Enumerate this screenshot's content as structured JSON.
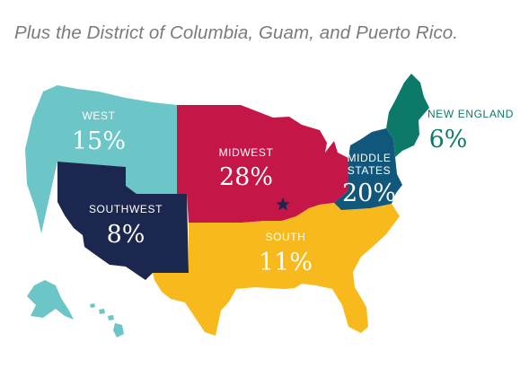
{
  "note": "Plus the District of Columbia, Guam, and Puerto Rico.",
  "colors": {
    "west": "#6cc6c7",
    "southwest": "#1c2750",
    "midwest": "#c41747",
    "south": "#f7b91c",
    "middle_states": "#11577c",
    "new_england": "#0d7a69",
    "new_england_label": "#0d7a69",
    "star": "#1c2750",
    "note_text": "#7b7b7b"
  },
  "regions": [
    {
      "id": "west",
      "name": "WEST",
      "value": "15%"
    },
    {
      "id": "southwest",
      "name": "SOUTHWEST",
      "value": "8%"
    },
    {
      "id": "midwest",
      "name": "MIDWEST",
      "value": "28%"
    },
    {
      "id": "south",
      "name": "SOUTH",
      "value": "11%"
    },
    {
      "id": "middle_states",
      "name_line1": "MIDDLE",
      "name_line2": "STATES",
      "value": "20%"
    },
    {
      "id": "new_england",
      "name": "NEW ENGLAND",
      "value": "6%"
    }
  ],
  "icons": {
    "capital_marker": "star-icon"
  }
}
